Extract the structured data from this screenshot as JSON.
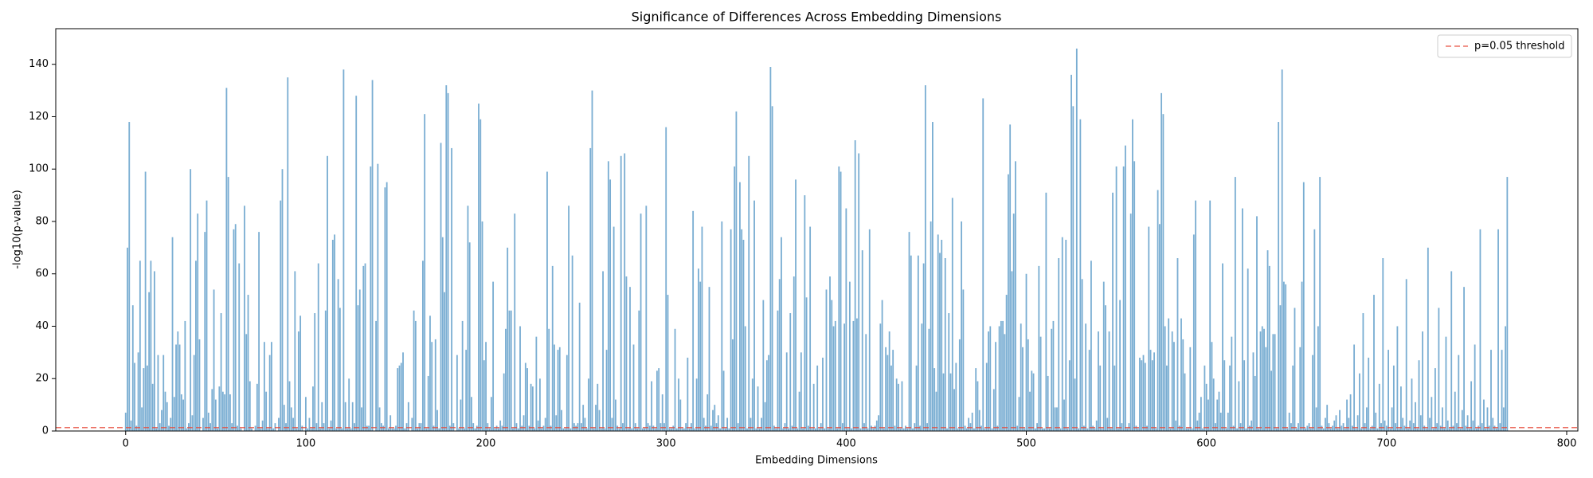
{
  "chart_data": {
    "type": "bar",
    "title": "Significance of Differences Across Embedding Dimensions",
    "xlabel": "Embedding Dimensions",
    "ylabel": "-log10(p-value)",
    "color": "#1f77b4",
    "xlim": [
      -38.8,
      806.2
    ],
    "ylim": [
      0,
      153.6
    ],
    "xticks": [
      0,
      100,
      200,
      300,
      400,
      500,
      600,
      700,
      800
    ],
    "yticks": [
      0,
      20,
      40,
      60,
      80,
      100,
      120,
      140
    ],
    "threshold": {
      "value": 1.3,
      "name": "p=0.05 threshold",
      "color": "#e74c3c"
    },
    "legend": "upper right",
    "values": [
      7,
      70,
      118,
      4,
      48,
      26,
      2,
      30,
      65,
      9,
      24,
      99,
      25,
      53,
      65,
      18,
      61,
      1,
      29,
      3,
      8,
      29,
      15,
      11,
      2,
      5,
      74,
      13,
      33,
      38,
      33,
      14,
      12,
      42,
      1,
      3,
      100,
      6,
      29,
      65,
      83,
      35,
      0,
      5,
      76,
      88,
      7,
      3,
      16,
      54,
      12,
      1,
      17,
      45,
      15,
      14,
      131,
      97,
      14,
      3,
      77,
      79,
      2,
      64,
      1,
      0,
      86,
      37,
      52,
      19,
      1,
      0,
      2,
      18,
      76,
      1,
      4,
      34,
      15,
      1,
      29,
      34,
      1,
      3,
      0,
      5,
      88,
      100,
      10,
      3,
      135,
      19,
      9,
      5,
      61,
      1,
      38,
      44,
      2,
      0,
      13,
      1,
      5,
      1,
      17,
      45,
      3,
      64,
      1,
      11,
      3,
      46,
      105,
      1,
      4,
      73,
      75,
      1,
      58,
      47,
      1,
      138,
      11,
      1,
      20,
      1,
      11,
      3,
      128,
      48,
      54,
      9,
      63,
      64,
      2,
      2,
      101,
      134,
      0,
      42,
      102,
      9,
      3,
      2,
      93,
      95,
      1,
      6,
      1,
      1,
      2,
      24,
      25,
      26,
      30,
      1,
      3,
      11,
      0,
      5,
      46,
      42,
      1,
      3,
      3,
      65,
      121,
      1,
      21,
      44,
      34,
      2,
      35,
      8,
      1,
      110,
      74,
      53,
      132,
      129,
      2,
      108,
      3,
      0,
      29,
      1,
      12,
      42,
      1,
      31,
      86,
      72,
      13,
      3,
      1,
      2,
      125,
      119,
      80,
      27,
      34,
      3,
      1,
      13,
      57,
      1,
      2,
      1,
      4,
      2,
      22,
      39,
      70,
      46,
      46,
      1,
      83,
      3,
      1,
      40,
      2,
      6,
      26,
      24,
      2,
      18,
      17,
      1,
      36,
      4,
      20,
      1,
      2,
      5,
      99,
      39,
      2,
      63,
      33,
      6,
      31,
      32,
      8,
      1,
      1,
      29,
      86,
      1,
      67,
      3,
      2,
      3,
      49,
      3,
      10,
      5,
      1,
      20,
      108,
      130,
      1,
      10,
      18,
      8,
      1,
      61,
      1,
      31,
      103,
      96,
      5,
      78,
      12,
      2,
      1,
      105,
      3,
      106,
      59,
      1,
      55,
      1,
      33,
      3,
      1,
      46,
      83,
      1,
      1,
      86,
      3,
      2,
      19,
      2,
      1,
      23,
      24,
      3,
      14,
      3,
      116,
      52,
      1,
      1,
      2,
      39,
      1,
      20,
      12,
      1,
      1,
      3,
      28,
      1,
      3,
      84,
      1,
      20,
      62,
      57,
      78,
      5,
      2,
      14,
      55,
      2,
      8,
      10,
      3,
      6,
      1,
      80,
      23,
      1,
      5,
      1,
      77,
      35,
      101,
      122,
      3,
      95,
      77,
      73,
      40,
      1,
      105,
      5,
      20,
      88,
      1,
      17,
      1,
      5,
      50,
      11,
      27,
      29,
      139,
      124,
      2,
      1,
      46,
      58,
      74,
      1,
      3,
      30,
      1,
      45,
      2,
      59,
      96,
      1,
      15,
      30,
      1,
      90,
      51,
      2,
      78,
      1,
      18,
      1,
      25,
      1,
      3,
      28,
      1,
      54,
      1,
      59,
      50,
      40,
      42,
      1,
      101,
      99,
      3,
      41,
      85,
      1,
      57,
      1,
      42,
      111,
      43,
      106,
      1,
      69,
      3,
      37,
      1,
      77,
      2,
      1,
      2,
      4,
      6,
      41,
      50,
      1,
      32,
      29,
      38,
      25,
      31,
      2,
      20,
      18,
      1,
      19,
      1,
      2,
      1,
      76,
      67,
      1,
      3,
      25,
      67,
      2,
      41,
      64,
      132,
      3,
      39,
      80,
      118,
      24,
      15,
      75,
      68,
      73,
      22,
      66,
      1,
      45,
      22,
      89,
      16,
      26,
      1,
      35,
      80,
      54,
      2,
      1,
      5,
      3,
      7,
      1,
      24,
      19,
      8,
      2,
      127,
      1,
      26,
      38,
      40,
      1,
      16,
      34,
      2,
      40,
      42,
      42,
      37,
      52,
      98,
      117,
      61,
      83,
      103,
      2,
      13,
      41,
      32,
      1,
      60,
      35,
      15,
      23,
      22,
      1,
      3,
      63,
      36,
      1,
      1,
      91,
      21,
      1,
      39,
      42,
      9,
      9,
      66,
      1,
      74,
      12,
      73,
      1,
      27,
      136,
      124,
      20,
      146,
      1,
      119,
      58,
      2,
      41,
      1,
      31,
      65,
      2,
      1,
      4,
      38,
      25,
      1,
      57,
      48,
      5,
      38,
      1,
      91,
      25,
      101,
      1,
      50,
      3,
      101,
      109,
      1,
      3,
      83,
      119,
      103,
      2,
      1,
      28,
      27,
      29,
      26,
      2,
      78,
      31,
      27,
      30,
      1,
      92,
      79,
      129,
      121,
      40,
      25,
      43,
      1,
      38,
      34,
      4,
      66,
      2,
      43,
      35,
      22,
      1,
      1,
      32,
      1,
      75,
      88,
      4,
      7,
      13,
      1,
      25,
      18,
      12,
      88,
      34,
      20,
      3,
      12,
      15,
      7,
      64,
      27,
      1,
      7,
      25,
      36,
      2,
      97,
      1,
      19,
      3,
      85,
      27,
      1,
      62,
      2,
      4,
      30,
      21,
      82,
      1,
      38,
      40,
      39,
      32,
      69,
      63,
      23,
      37,
      37,
      1,
      118,
      48,
      138,
      57,
      56,
      1,
      7,
      3,
      25,
      47,
      1,
      3,
      32,
      57,
      95,
      1,
      2,
      3,
      1,
      29,
      77,
      9,
      40,
      97,
      2,
      1,
      5,
      10,
      3,
      1,
      2,
      4,
      6,
      1,
      8,
      2,
      3,
      1,
      12,
      5,
      14,
      2,
      33,
      1,
      6,
      22,
      1,
      45,
      3,
      9,
      28,
      1,
      2,
      52,
      7,
      1,
      18,
      3,
      66,
      4,
      2,
      31,
      1,
      9,
      25,
      3,
      40,
      1,
      17,
      5,
      2,
      58,
      1,
      4,
      20,
      3,
      11,
      1,
      27,
      6,
      38,
      2,
      1,
      70,
      5,
      13,
      1,
      24,
      3,
      47,
      2,
      9,
      1,
      36,
      4,
      1,
      61,
      2,
      15,
      3,
      29,
      1,
      8,
      55,
      2,
      6,
      1,
      19,
      4,
      33,
      1,
      2,
      77,
      3,
      12,
      1,
      9,
      2,
      31,
      5,
      2,
      1,
      77,
      3,
      31,
      9,
      40,
      97
    ]
  }
}
